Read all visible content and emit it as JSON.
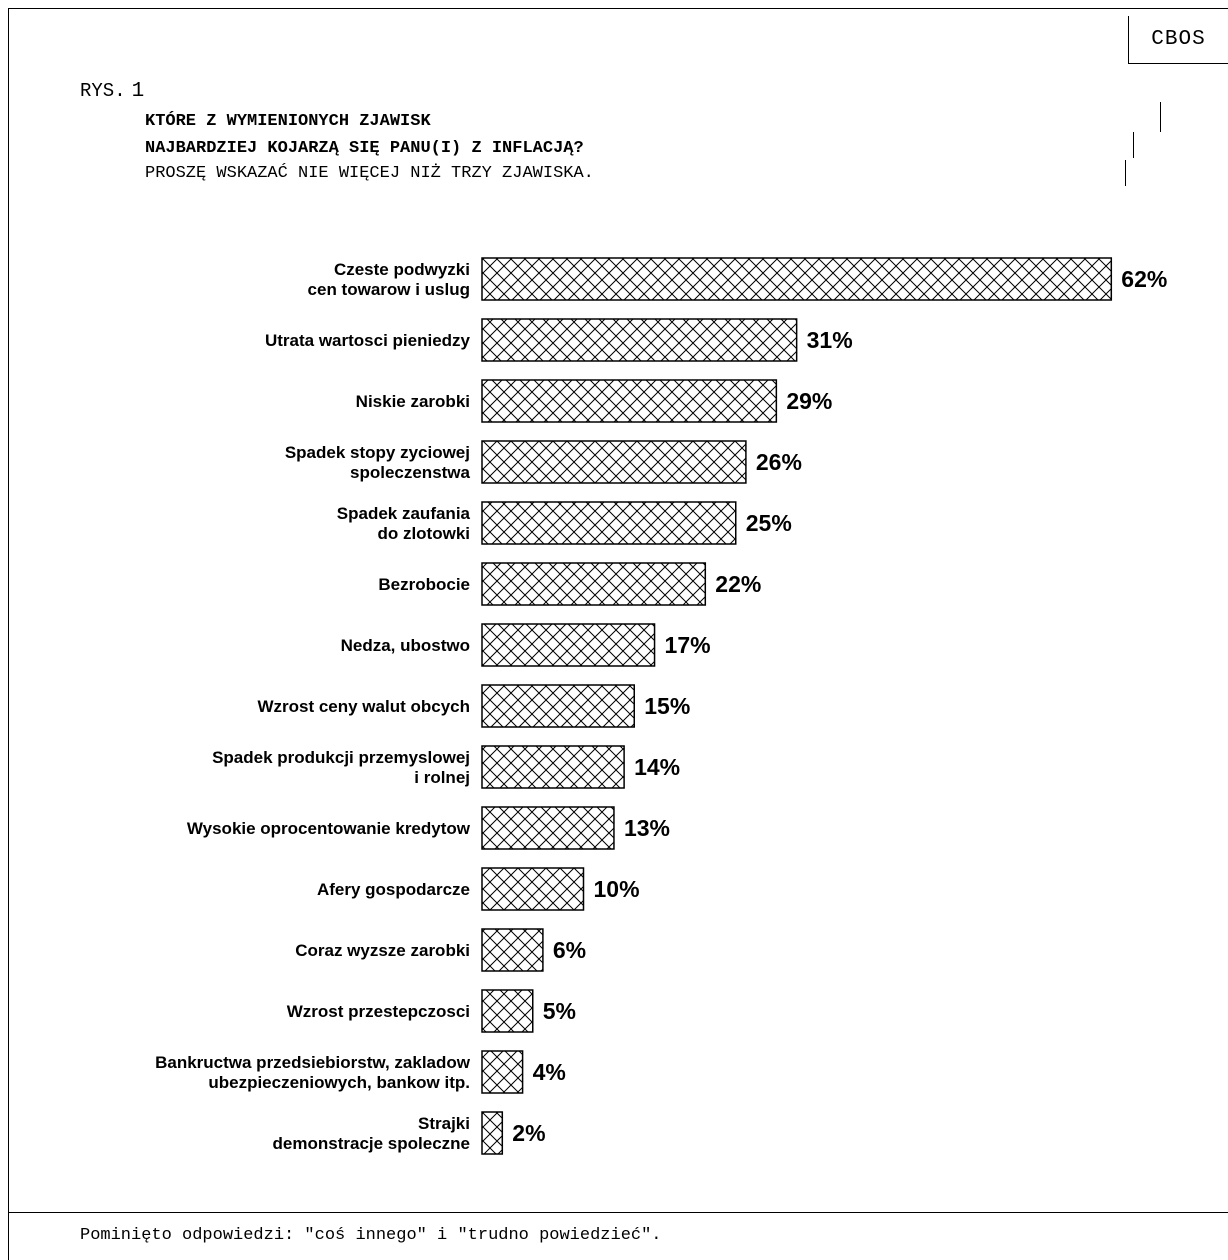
{
  "badge": "CBOS",
  "figure_label": "RYS.",
  "figure_number": "1",
  "question_line1": "KTÓRE Z WYMIENIONYCH ZJAWISK",
  "question_line2": "NAJBARDZIEJ KOJARZĄ SIĘ PANU(I) Z INFLACJĄ?",
  "instruction": "PROSZĘ WSKAZAĆ NIE WIĘCEJ NIŻ TRZY ZJAWISKA.",
  "footer": "Pominięto odpowiedzi: \"coś innego\" i \"trudno powiedzieć\".",
  "chart_data": {
    "type": "bar",
    "orientation": "horizontal",
    "fill": "crosshatch",
    "unit": "%",
    "categories": [
      [
        "Czeste podwyzki",
        "cen towarow i uslug"
      ],
      [
        "Utrata wartosci pieniedzy"
      ],
      [
        "Niskie zarobki"
      ],
      [
        "Spadek stopy zyciowej",
        "spoleczenstwa"
      ],
      [
        "Spadek zaufania",
        "do zlotowki"
      ],
      [
        "Bezrobocie"
      ],
      [
        "Nedza, ubostwo"
      ],
      [
        "Wzrost ceny walut obcych"
      ],
      [
        "Spadek produkcji przemyslowej",
        "i rolnej"
      ],
      [
        "Wysokie oprocentowanie kredytow"
      ],
      [
        "Afery gospodarcze"
      ],
      [
        "Coraz wyzsze zarobki"
      ],
      [
        "Wzrost przestepczosci"
      ],
      [
        "Bankructwa przedsiebiorstw, zakladow",
        "ubezpieczeniowych, bankow itp."
      ],
      [
        "Strajki",
        "demonstracje spoleczne"
      ]
    ],
    "values": [
      62,
      31,
      29,
      26,
      25,
      22,
      17,
      15,
      14,
      13,
      10,
      6,
      5,
      4,
      2
    ],
    "value_labels": [
      "62%",
      "31%",
      "29%",
      "26%",
      "25%",
      "22%",
      "17%",
      "15%",
      "14%",
      "13%",
      "10%",
      "6%",
      "5%",
      "4%",
      "2%"
    ]
  }
}
